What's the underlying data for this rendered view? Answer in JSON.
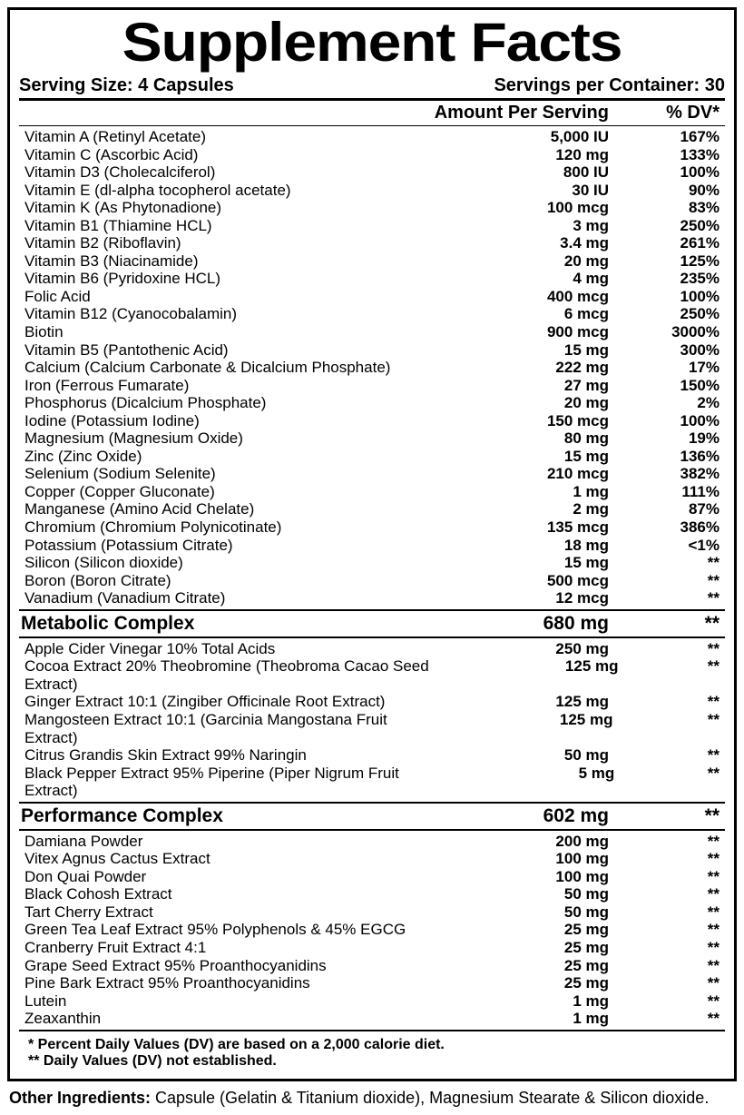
{
  "title": "Supplement Facts",
  "serving_size_label": "Serving Size: 4 Capsules",
  "servings_per_container_label": "Servings per Container: 30",
  "header": {
    "amount": "Amount Per Serving",
    "dv": "% DV*"
  },
  "nutrients": [
    {
      "name": "Vitamin A (Retinyl Acetate)",
      "amount": "5,000 IU",
      "dv": "167%"
    },
    {
      "name": "Vitamin C (Ascorbic Acid)",
      "amount": "120 mg",
      "dv": "133%"
    },
    {
      "name": "Vitamin D3  (Cholecalciferol)",
      "amount": "800 IU",
      "dv": "100%"
    },
    {
      "name": "Vitamin E (dl-alpha tocopherol acetate)",
      "amount": "30 IU",
      "dv": "90%"
    },
    {
      "name": "Vitamin K (As Phytonadione)",
      "amount": "100 mcg",
      "dv": "83%"
    },
    {
      "name": "Vitamin B1 (Thiamine HCL)",
      "amount": "3 mg",
      "dv": "250%"
    },
    {
      "name": "Vitamin B2 (Riboflavin)",
      "amount": "3.4 mg",
      "dv": "261%"
    },
    {
      "name": "Vitamin B3 (Niacinamide)",
      "amount": "20 mg",
      "dv": "125%"
    },
    {
      "name": "Vitamin B6 (Pyridoxine HCL)",
      "amount": "4 mg",
      "dv": "235%"
    },
    {
      "name": "Folic Acid",
      "amount": "400 mcg",
      "dv": "100%"
    },
    {
      "name": "Vitamin B12 (Cyanocobalamin)",
      "amount": "6 mcg",
      "dv": "250%"
    },
    {
      "name": "Biotin",
      "amount": "900 mcg",
      "dv": "3000%"
    },
    {
      "name": "Vitamin B5 (Pantothenic Acid)",
      "amount": "15 mg",
      "dv": "300%"
    },
    {
      "name": "Calcium (Calcium Carbonate & Dicalcium Phosphate)",
      "amount": "222 mg",
      "dv": "17%"
    },
    {
      "name": "Iron (Ferrous Fumarate)",
      "amount": "27 mg",
      "dv": "150%"
    },
    {
      "name": "Phosphorus (Dicalcium Phosphate)",
      "amount": "20 mg",
      "dv": "2%"
    },
    {
      "name": "Iodine (Potassium Iodine)",
      "amount": "150 mcg",
      "dv": "100%"
    },
    {
      "name": "Magnesium (Magnesium Oxide)",
      "amount": "80 mg",
      "dv": "19%"
    },
    {
      "name": "Zinc (Zinc Oxide)",
      "amount": "15 mg",
      "dv": "136%"
    },
    {
      "name": "Selenium (Sodium Selenite)",
      "amount": "210 mcg",
      "dv": "382%"
    },
    {
      "name": "Copper (Copper Gluconate)",
      "amount": "1 mg",
      "dv": "111%"
    },
    {
      "name": "Manganese (Amino Acid Chelate)",
      "amount": "2 mg",
      "dv": "87%"
    },
    {
      "name": "Chromium (Chromium Polynicotinate)",
      "amount": "135 mcg",
      "dv": "386%"
    },
    {
      "name": "Potassium (Potassium Citrate)",
      "amount": "18 mg",
      "dv": "<1%"
    },
    {
      "name": "Silicon (Silicon dioxide)",
      "amount": "15 mg",
      "dv": "**"
    },
    {
      "name": "Boron (Boron Citrate)",
      "amount": "500 mcg",
      "dv": "**"
    },
    {
      "name": "Vanadium (Vanadium Citrate)",
      "amount": "12 mcg",
      "dv": "**"
    }
  ],
  "metabolic": {
    "title": "Metabolic Complex",
    "amount": "680 mg",
    "dv": "**",
    "items": [
      {
        "name": "Apple Cider Vinegar 10% Total Acids",
        "amount": "250 mg",
        "dv": "**"
      },
      {
        "name": "Cocoa Extract 20% Theobromine (Theobroma Cacao Seed Extract)",
        "amount": "125 mg",
        "dv": "**"
      },
      {
        "name": "Ginger Extract 10:1 (Zingiber Officinale Root Extract)",
        "amount": "125 mg",
        "dv": "**"
      },
      {
        "name": "Mangosteen Extract 10:1 (Garcinia Mangostana Fruit Extract)",
        "amount": "125 mg",
        "dv": "**"
      },
      {
        "name": "Citrus Grandis Skin Extract 99% Naringin",
        "amount": "50 mg",
        "dv": "**"
      },
      {
        "name": "Black Pepper Extract 95% Piperine (Piper Nigrum Fruit Extract)",
        "amount": "5 mg",
        "dv": "**"
      }
    ]
  },
  "performance": {
    "title": "Performance Complex",
    "amount": "602 mg",
    "dv": "**",
    "items": [
      {
        "name": "Damiana Powder",
        "amount": "200 mg",
        "dv": "**"
      },
      {
        "name": "Vitex Agnus Cactus Extract",
        "amount": "100 mg",
        "dv": "**"
      },
      {
        "name": "Don Quai Powder",
        "amount": "100 mg",
        "dv": "**"
      },
      {
        "name": "Black Cohosh Extract",
        "amount": "50 mg",
        "dv": "**"
      },
      {
        "name": "Tart Cherry Extract",
        "amount": "50 mg",
        "dv": "**"
      },
      {
        "name": "Green Tea Leaf Extract 95% Polyphenols & 45% EGCG",
        "amount": "25 mg",
        "dv": "**"
      },
      {
        "name": "Cranberry Fruit Extract 4:1",
        "amount": "25 mg",
        "dv": "**"
      },
      {
        "name": "Grape Seed Extract 95% Proanthocyanidins",
        "amount": "25 mg",
        "dv": "**"
      },
      {
        "name": "Pine Bark Extract 95% Proanthocyanidins",
        "amount": "25 mg",
        "dv": "**"
      },
      {
        "name": "Lutein",
        "amount": "1 mg",
        "dv": "**"
      },
      {
        "name": "Zeaxanthin",
        "amount": "1 mg",
        "dv": "**"
      }
    ]
  },
  "footnote1": "* Percent Daily Values (DV) are based on a 2,000 calorie diet.",
  "footnote2": "** Daily Values (DV) not established.",
  "other_ingredients_label": "Other Ingredients:",
  "other_ingredients_text": "  Capsule (Gelatin & Titanium dioxide), Magnesium Stearate & Silicon dioxide."
}
